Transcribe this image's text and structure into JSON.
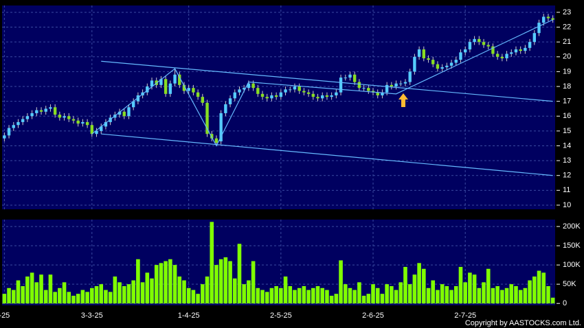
{
  "chart_data": {
    "type": "candlestick",
    "up_color": "#55ccff",
    "down_color": "#88dd22",
    "volume_color": "#80ff00",
    "trendline_color": "#66bbff",
    "grid": true,
    "xlim": [
      -0.5,
      119.5
    ],
    "xticks": [
      {
        "value": 0,
        "label": "-25"
      },
      {
        "value": 19,
        "label": "3-3-25"
      },
      {
        "value": 40,
        "label": "1-4-25"
      },
      {
        "value": 60,
        "label": "2-5-25"
      },
      {
        "value": 80,
        "label": "2-6-25"
      },
      {
        "value": 100,
        "label": "2-7-25"
      }
    ],
    "ylim": [
      9.72,
      23.46
    ],
    "yticks": [
      10,
      11,
      12,
      13,
      14,
      15,
      16,
      17,
      18,
      19,
      20,
      21,
      22,
      23
    ],
    "open": [
      14.5,
      14.7,
      15.2,
      15.4,
      15.6,
      15.8,
      16.0,
      16.2,
      16.4,
      16.3,
      16.5,
      16.6,
      16.1,
      15.9,
      16.0,
      15.8,
      15.7,
      15.5,
      15.6,
      15.4,
      14.8,
      15.0,
      15.3,
      15.6,
      15.9,
      16.1,
      16.3,
      16.0,
      16.6,
      17.0,
      17.4,
      17.6,
      18.0,
      18.4,
      18.1,
      18.5,
      17.5,
      18.2,
      18.8,
      18.1,
      17.7,
      17.9,
      17.6,
      17.3,
      16.9,
      14.8,
      14.5,
      14.3,
      16.2,
      16.8,
      17.2,
      17.6,
      17.8,
      17.9,
      18.2,
      17.9,
      17.5,
      17.3,
      17.2,
      17.4,
      17.3,
      17.6,
      17.8,
      17.8,
      18.0,
      17.7,
      17.6,
      17.5,
      17.3,
      17.2,
      17.4,
      17.3,
      17.4,
      17.6,
      18.6,
      18.6,
      18.8,
      18.3,
      17.9,
      17.9,
      17.7,
      17.6,
      17.4,
      17.6,
      18.1,
      18.0,
      18.2,
      18.2,
      18.3,
      19.0,
      20.0,
      20.5,
      19.9,
      19.8,
      19.5,
      19.2,
      19.3,
      19.4,
      19.6,
      19.8,
      20.3,
      20.5,
      21.0,
      21.2,
      21.0,
      20.8,
      20.7,
      20.2,
      20.0,
      19.9,
      20.2,
      20.3,
      20.5,
      20.4,
      20.6,
      21.0,
      21.6,
      22.3,
      22.7,
      22.6
    ],
    "high": [
      14.9,
      15.4,
      15.6,
      15.8,
      16.0,
      16.2,
      16.4,
      16.6,
      16.6,
      16.7,
      16.8,
      16.8,
      16.3,
      16.2,
      16.2,
      16.0,
      15.9,
      15.8,
      15.8,
      15.6,
      15.2,
      15.5,
      15.8,
      16.1,
      16.3,
      16.5,
      16.5,
      16.8,
      17.2,
      17.6,
      17.8,
      18.2,
      18.6,
      18.6,
      18.7,
      18.7,
      18.4,
      19.2,
      19.0,
      18.3,
      18.1,
      18.1,
      17.8,
      17.5,
      17.1,
      15.0,
      14.7,
      16.4,
      17.0,
      17.4,
      17.8,
      18.0,
      18.1,
      18.4,
      18.4,
      18.1,
      17.7,
      17.5,
      17.6,
      17.6,
      17.8,
      18.0,
      18.0,
      18.2,
      18.2,
      17.9,
      17.8,
      17.7,
      17.5,
      17.6,
      17.6,
      17.6,
      17.8,
      18.8,
      18.8,
      19.0,
      19.0,
      18.5,
      18.1,
      18.1,
      17.9,
      17.8,
      17.8,
      18.3,
      18.3,
      18.4,
      18.4,
      18.5,
      19.2,
      20.2,
      20.7,
      20.7,
      20.1,
      20.0,
      19.7,
      19.5,
      19.6,
      19.8,
      20.0,
      20.5,
      20.7,
      21.2,
      21.4,
      21.4,
      21.2,
      21.0,
      20.9,
      20.4,
      20.2,
      20.4,
      20.5,
      20.7,
      20.7,
      20.8,
      21.2,
      21.8,
      22.5,
      22.9,
      22.9,
      22.8
    ],
    "low": [
      14.3,
      14.5,
      15.0,
      15.2,
      15.4,
      15.6,
      15.8,
      16.0,
      16.1,
      16.1,
      16.3,
      15.9,
      15.7,
      15.7,
      15.6,
      15.5,
      15.3,
      15.3,
      15.2,
      14.6,
      14.6,
      14.8,
      15.1,
      15.4,
      15.7,
      15.9,
      15.8,
      15.8,
      16.4,
      16.8,
      17.2,
      17.4,
      17.8,
      17.9,
      17.9,
      17.3,
      17.3,
      18.0,
      17.9,
      17.5,
      17.5,
      17.4,
      17.1,
      16.7,
      14.6,
      14.3,
      14.0,
      14.1,
      16.0,
      16.6,
      17.0,
      17.4,
      17.6,
      17.7,
      17.7,
      17.3,
      17.1,
      17.0,
      17.0,
      17.1,
      17.1,
      17.4,
      17.6,
      17.6,
      17.5,
      17.4,
      17.3,
      17.1,
      17.0,
      17.0,
      17.1,
      17.1,
      17.2,
      17.4,
      18.4,
      18.4,
      18.1,
      17.7,
      17.7,
      17.5,
      17.4,
      17.2,
      17.2,
      17.4,
      17.8,
      17.8,
      18.0,
      18.0,
      18.1,
      18.8,
      19.8,
      19.7,
      19.6,
      19.3,
      19.0,
      19.0,
      19.1,
      19.2,
      19.4,
      19.6,
      20.1,
      20.3,
      20.8,
      20.8,
      20.6,
      20.5,
      20.0,
      19.8,
      19.7,
      19.7,
      20.0,
      20.1,
      20.2,
      20.2,
      20.4,
      20.8,
      21.4,
      22.1,
      22.4,
      22.3
    ],
    "close": [
      14.7,
      15.2,
      15.4,
      15.6,
      15.8,
      16.0,
      16.2,
      16.4,
      16.3,
      16.5,
      16.6,
      16.1,
      15.9,
      16.0,
      15.8,
      15.7,
      15.5,
      15.6,
      15.4,
      14.8,
      15.0,
      15.3,
      15.6,
      15.9,
      16.1,
      16.3,
      16.0,
      16.6,
      17.0,
      17.4,
      17.6,
      18.0,
      18.4,
      18.1,
      18.5,
      17.5,
      18.2,
      18.8,
      18.1,
      17.7,
      17.9,
      17.6,
      17.3,
      16.9,
      14.8,
      14.5,
      14.2,
      16.2,
      16.8,
      17.2,
      17.6,
      17.8,
      17.9,
      18.2,
      17.9,
      17.5,
      17.3,
      17.2,
      17.4,
      17.3,
      17.6,
      17.8,
      17.8,
      18.0,
      17.7,
      17.6,
      17.5,
      17.3,
      17.2,
      17.4,
      17.3,
      17.4,
      17.6,
      18.6,
      18.6,
      18.8,
      18.3,
      17.9,
      17.9,
      17.7,
      17.6,
      17.4,
      17.6,
      18.1,
      18.0,
      18.2,
      18.2,
      18.3,
      19.0,
      20.0,
      20.5,
      19.9,
      19.8,
      19.5,
      19.2,
      19.3,
      19.4,
      19.6,
      19.8,
      20.3,
      20.5,
      21.0,
      21.2,
      21.0,
      20.8,
      20.7,
      20.2,
      20.0,
      19.9,
      20.2,
      20.3,
      20.5,
      20.4,
      20.6,
      21.0,
      21.6,
      22.3,
      22.7,
      22.6,
      22.5
    ],
    "trendlines": [
      {
        "x": [
          21,
          119
        ],
        "y": [
          19.7,
          17.0
        ]
      },
      {
        "x": [
          21,
          119
        ],
        "y": [
          14.8,
          12.0
        ]
      },
      {
        "x": [
          19,
          37,
          46,
          53,
          85,
          119
        ],
        "y": [
          14.8,
          19.2,
          14.0,
          18.3,
          17.5,
          22.5
        ]
      }
    ],
    "volume": {
      "ylim": [
        -5000,
        218000
      ],
      "yticks": [
        {
          "value": 0,
          "label": "0"
        },
        {
          "value": 50000,
          "label": "50K"
        },
        {
          "value": 100000,
          "label": "100K"
        },
        {
          "value": 150000,
          "label": "150K"
        },
        {
          "value": 200000,
          "label": "200K"
        }
      ],
      "values": [
        25000,
        40000,
        35000,
        60000,
        45000,
        70000,
        80000,
        55000,
        75000,
        35000,
        75000,
        30000,
        40000,
        55000,
        30000,
        20000,
        25000,
        35000,
        30000,
        40000,
        45000,
        50000,
        35000,
        30000,
        70000,
        55000,
        45000,
        50000,
        60000,
        115000,
        55000,
        80000,
        65000,
        100000,
        105000,
        110000,
        115000,
        100000,
        70000,
        60000,
        40000,
        35000,
        25000,
        50000,
        70000,
        212000,
        100000,
        115000,
        120000,
        110000,
        65000,
        155000,
        50000,
        60000,
        110000,
        40000,
        35000,
        30000,
        40000,
        45000,
        40000,
        70000,
        45000,
        35000,
        40000,
        45000,
        35000,
        40000,
        45000,
        40000,
        35000,
        20000,
        25000,
        112000,
        50000,
        40000,
        35000,
        55000,
        20000,
        25000,
        50000,
        40000,
        25000,
        50000,
        45000,
        35000,
        55000,
        95000,
        50000,
        75000,
        105000,
        90000,
        40000,
        60000,
        35000,
        50000,
        45000,
        35000,
        45000,
        95000,
        55000,
        80000,
        75000,
        40000,
        55000,
        90000,
        40000,
        45000,
        35000,
        40000,
        50000,
        45000,
        35000,
        40000,
        60000,
        70000,
        85000,
        80000,
        45000,
        15000
      ]
    },
    "copyright": "Copyright by AASTOCKS.com Ltd."
  }
}
